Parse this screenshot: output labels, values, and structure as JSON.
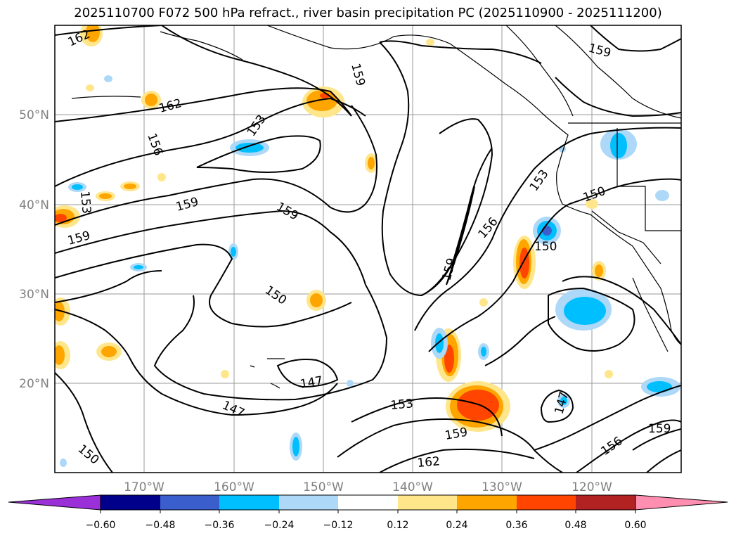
{
  "title": "2025110700 F072 500 hPa refract., river basin precipitation PC (2025110900 - 2025111200)",
  "lat_labels": [
    "50°N",
    "40°N",
    "30°N",
    "20°N"
  ],
  "lon_labels": [
    "170°W",
    "160°W",
    "150°W",
    "140°W",
    "130°W",
    "120°W"
  ],
  "contour_labels": [
    "162",
    "159",
    "162",
    "159",
    "153",
    "156",
    "159",
    "153",
    "159",
    "159",
    "150",
    "147",
    "147",
    "153",
    "159",
    "162",
    "159",
    "156",
    "153",
    "150",
    "150",
    "147",
    "159",
    "156",
    "150"
  ],
  "colorbar": {
    "ticks": [
      "−0.60",
      "−0.48",
      "−0.36",
      "−0.24",
      "−0.12",
      "0.12",
      "0.24",
      "0.36",
      "0.48",
      "0.60"
    ],
    "colors": [
      "#9b30d9",
      "#00008b",
      "#3a5fcd",
      "#00bfff",
      "#add8f8",
      "#ffffff",
      "#ffe68a",
      "#ffa500",
      "#ff4500",
      "#b22222",
      "#ff8eb0"
    ]
  },
  "shading_colors": {
    "light_orange": "#ffe68a",
    "orange": "#ffa500",
    "red_orange": "#ff4500",
    "light_blue": "#add8f8",
    "blue": "#00bfff",
    "dark_blue": "#3a5fcd"
  }
}
